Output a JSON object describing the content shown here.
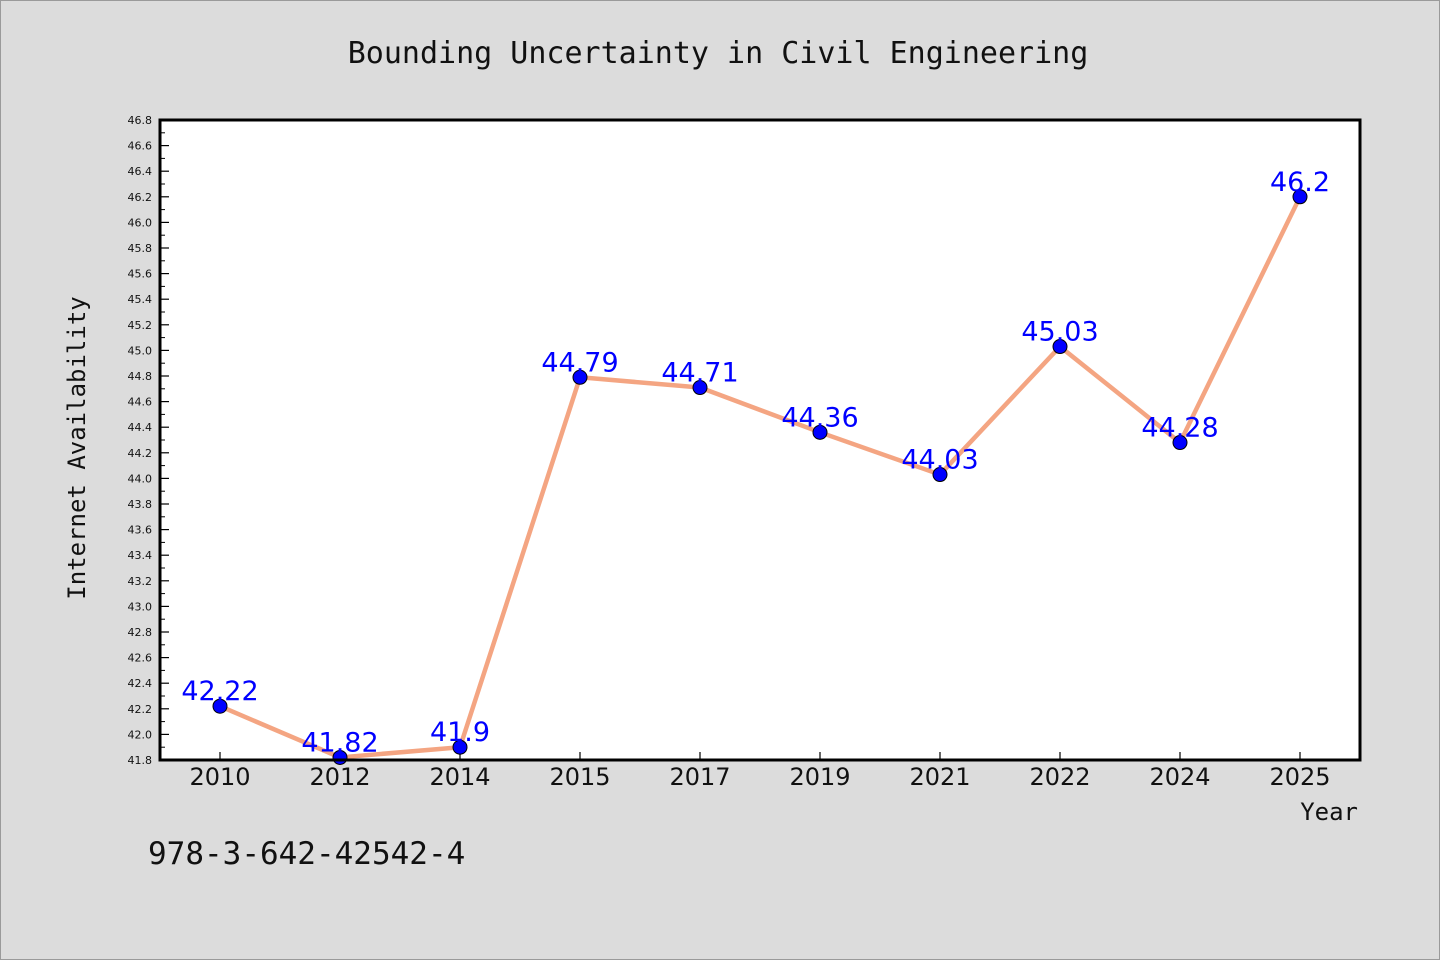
{
  "chart_data": {
    "type": "line",
    "title": "Bounding Uncertainty in Civil Engineering",
    "xlabel": "Year",
    "ylabel": "Internet Availability",
    "categories": [
      "2010",
      "2012",
      "2014",
      "2015",
      "2017",
      "2019",
      "2021",
      "2022",
      "2024",
      "2025"
    ],
    "series": [
      {
        "values": [
          42.22,
          41.82,
          41.9,
          44.79,
          44.71,
          44.36,
          44.03,
          45.03,
          44.28,
          46.2
        ],
        "data_labels": [
          "42.22",
          "41.82",
          "41.9",
          "44.79",
          "44.71",
          "44.36",
          "44.03",
          "45.03",
          "44.28",
          "46.2"
        ],
        "line_color": "#f4a582",
        "marker_color": "#0000ff",
        "label_color": "#0000ff"
      }
    ],
    "ylim": [
      41.8,
      46.8
    ],
    "yticks": [
      "41.8",
      "42.0",
      "42.2",
      "42.4",
      "42.6",
      "42.8",
      "43.0",
      "43.2",
      "43.4",
      "43.6",
      "43.8",
      "44.0",
      "44.2",
      "44.4",
      "44.6",
      "44.8",
      "45.0",
      "45.2",
      "45.4",
      "45.6",
      "45.8",
      "46.0",
      "46.2",
      "46.4",
      "46.6",
      "46.8"
    ],
    "grid": false,
    "legend": "none"
  },
  "footnote": "978-3-642-42542-4",
  "colors": {
    "page_background": "#dcdcdc",
    "plot_background": "#ffffff"
  }
}
